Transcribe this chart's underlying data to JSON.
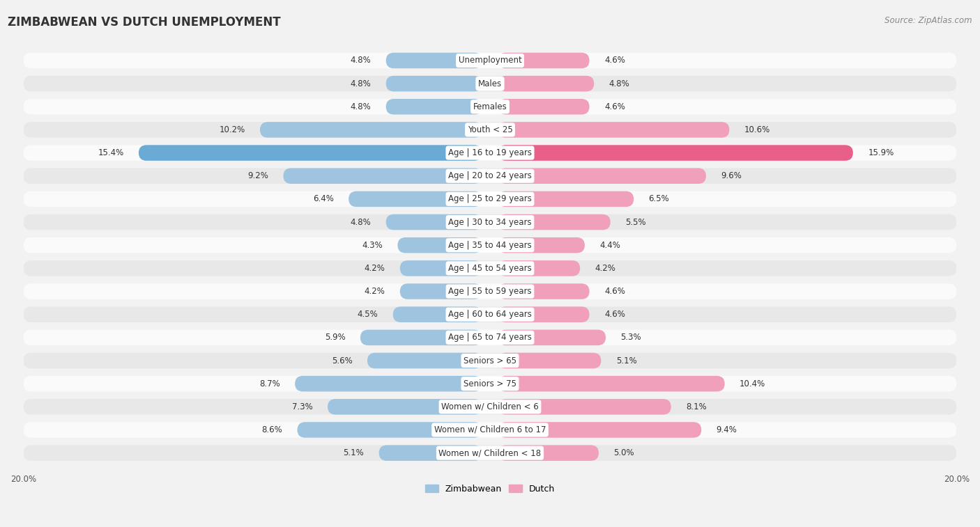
{
  "title": "ZIMBABWEAN VS DUTCH UNEMPLOYMENT",
  "source": "Source: ZipAtlas.com",
  "categories": [
    "Unemployment",
    "Males",
    "Females",
    "Youth < 25",
    "Age | 16 to 19 years",
    "Age | 20 to 24 years",
    "Age | 25 to 29 years",
    "Age | 30 to 34 years",
    "Age | 35 to 44 years",
    "Age | 45 to 54 years",
    "Age | 55 to 59 years",
    "Age | 60 to 64 years",
    "Age | 65 to 74 years",
    "Seniors > 65",
    "Seniors > 75",
    "Women w/ Children < 6",
    "Women w/ Children 6 to 17",
    "Women w/ Children < 18"
  ],
  "zimbabwean": [
    4.8,
    4.8,
    4.8,
    10.2,
    15.4,
    9.2,
    6.4,
    4.8,
    4.3,
    4.2,
    4.2,
    4.5,
    5.9,
    5.6,
    8.7,
    7.3,
    8.6,
    5.1
  ],
  "dutch": [
    4.6,
    4.8,
    4.6,
    10.6,
    15.9,
    9.6,
    6.5,
    5.5,
    4.4,
    4.2,
    4.6,
    4.6,
    5.3,
    5.1,
    10.4,
    8.1,
    9.4,
    5.0
  ],
  "zimbabwean_color": "#9ec4df",
  "dutch_color": "#f0a0ba",
  "highlight_zim_color": "#6aaad4",
  "highlight_dutch_color": "#e8608a",
  "background_color": "#f2f2f2",
  "row_bg_even": "#fafafa",
  "row_bg_odd": "#e8e8e8",
  "max_val": 20.0,
  "label_fontsize": 8.5,
  "title_fontsize": 12,
  "source_fontsize": 8.5,
  "cat_fontsize": 8.5
}
